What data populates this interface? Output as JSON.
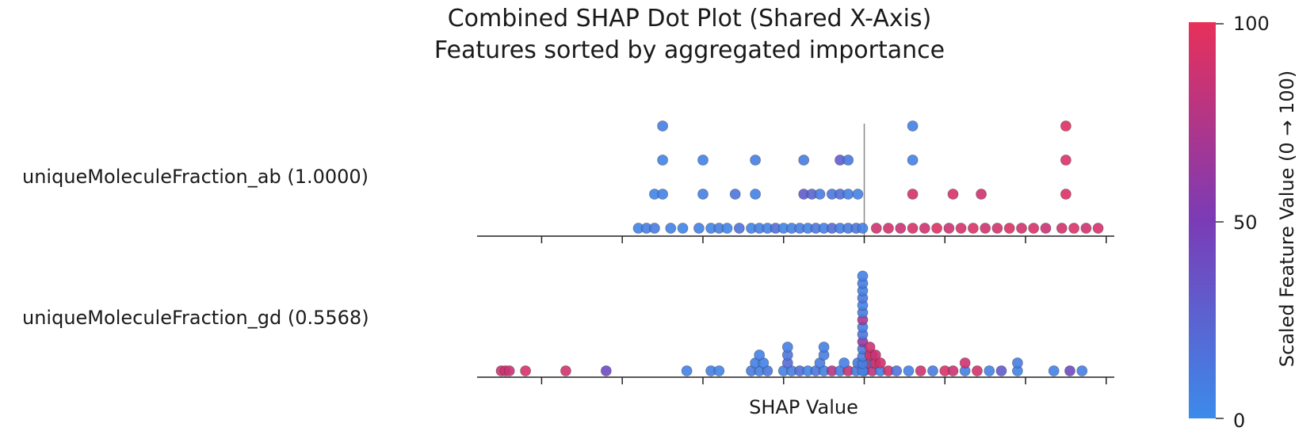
{
  "chart_data": {
    "type": "scatter",
    "title": "Combined SHAP Dot Plot (Shared X-Axis)",
    "subtitle": "Features sorted by aggregated importance",
    "xlabel": "SHAP Value",
    "xlim": [
      -4.8,
      3.1
    ],
    "x_ticks": [
      -4,
      -3,
      -2,
      -1,
      0,
      1,
      2,
      3
    ],
    "zero_line": 0,
    "features": [
      {
        "label": "uniqueMoleculeFraction_ab (1.0000)",
        "points": [
          {
            "x": -2.8,
            "layer": 0,
            "v": 5
          },
          {
            "x": -2.7,
            "layer": 0,
            "v": 8
          },
          {
            "x": -2.6,
            "layer": 0,
            "v": 10
          },
          {
            "x": -2.4,
            "layer": 0,
            "v": 6
          },
          {
            "x": -2.25,
            "layer": 0,
            "v": 4
          },
          {
            "x": -2.05,
            "layer": 0,
            "v": 7
          },
          {
            "x": -1.9,
            "layer": 0,
            "v": 5
          },
          {
            "x": -1.8,
            "layer": 0,
            "v": 9
          },
          {
            "x": -1.7,
            "layer": 0,
            "v": 4
          },
          {
            "x": -1.55,
            "layer": 0,
            "v": 16
          },
          {
            "x": -1.4,
            "layer": 0,
            "v": 5
          },
          {
            "x": -1.3,
            "layer": 0,
            "v": 8
          },
          {
            "x": -1.2,
            "layer": 0,
            "v": 6
          },
          {
            "x": -1.1,
            "layer": 0,
            "v": 18
          },
          {
            "x": -1.0,
            "layer": 0,
            "v": 4
          },
          {
            "x": -0.9,
            "layer": 0,
            "v": 7
          },
          {
            "x": -0.8,
            "layer": 0,
            "v": 9
          },
          {
            "x": -0.7,
            "layer": 0,
            "v": 5
          },
          {
            "x": -0.6,
            "layer": 0,
            "v": 12
          },
          {
            "x": -0.5,
            "layer": 0,
            "v": 6
          },
          {
            "x": -0.4,
            "layer": 0,
            "v": 20
          },
          {
            "x": -0.3,
            "layer": 0,
            "v": 8
          },
          {
            "x": -0.2,
            "layer": 0,
            "v": 10
          },
          {
            "x": -0.1,
            "layer": 0,
            "v": 14
          },
          {
            "x": -0.02,
            "layer": 0,
            "v": 6
          },
          {
            "x": 0.15,
            "layer": 0,
            "v": 88
          },
          {
            "x": 0.3,
            "layer": 0,
            "v": 90
          },
          {
            "x": 0.45,
            "layer": 0,
            "v": 86
          },
          {
            "x": 0.6,
            "layer": 0,
            "v": 92
          },
          {
            "x": 0.75,
            "layer": 0,
            "v": 89
          },
          {
            "x": 0.9,
            "layer": 0,
            "v": 95
          },
          {
            "x": 1.05,
            "layer": 0,
            "v": 87
          },
          {
            "x": 1.2,
            "layer": 0,
            "v": 91
          },
          {
            "x": 1.35,
            "layer": 0,
            "v": 93
          },
          {
            "x": 1.5,
            "layer": 0,
            "v": 88
          },
          {
            "x": 1.65,
            "layer": 0,
            "v": 90
          },
          {
            "x": 1.8,
            "layer": 0,
            "v": 94
          },
          {
            "x": 1.95,
            "layer": 0,
            "v": 89
          },
          {
            "x": 2.1,
            "layer": 0,
            "v": 92
          },
          {
            "x": 2.25,
            "layer": 0,
            "v": 86
          },
          {
            "x": 2.45,
            "layer": 0,
            "v": 90
          },
          {
            "x": 2.6,
            "layer": 0,
            "v": 93
          },
          {
            "x": 2.75,
            "layer": 0,
            "v": 88
          },
          {
            "x": 2.9,
            "layer": 0,
            "v": 91
          },
          {
            "x": -2.6,
            "layer": 1,
            "v": 4
          },
          {
            "x": -2.5,
            "layer": 1,
            "v": 6
          },
          {
            "x": -2.0,
            "layer": 1,
            "v": 8
          },
          {
            "x": -1.6,
            "layer": 1,
            "v": 14
          },
          {
            "x": -1.35,
            "layer": 1,
            "v": 6
          },
          {
            "x": -0.75,
            "layer": 1,
            "v": 30
          },
          {
            "x": -0.65,
            "layer": 1,
            "v": 24
          },
          {
            "x": -0.55,
            "layer": 1,
            "v": 10
          },
          {
            "x": -0.4,
            "layer": 1,
            "v": 12
          },
          {
            "x": -0.3,
            "layer": 1,
            "v": 18
          },
          {
            "x": -0.2,
            "layer": 1,
            "v": 8
          },
          {
            "x": -0.08,
            "layer": 1,
            "v": 6
          },
          {
            "x": 0.6,
            "layer": 1,
            "v": 90
          },
          {
            "x": 1.1,
            "layer": 1,
            "v": 92
          },
          {
            "x": 1.45,
            "layer": 1,
            "v": 88
          },
          {
            "x": 2.5,
            "layer": 1,
            "v": 94
          },
          {
            "x": -2.5,
            "layer": 2,
            "v": 5
          },
          {
            "x": -2.0,
            "layer": 2,
            "v": 6
          },
          {
            "x": -1.35,
            "layer": 2,
            "v": 8
          },
          {
            "x": -0.75,
            "layer": 2,
            "v": 10
          },
          {
            "x": -0.3,
            "layer": 2,
            "v": 28
          },
          {
            "x": -0.2,
            "layer": 2,
            "v": 12
          },
          {
            "x": 0.6,
            "layer": 2,
            "v": 6
          },
          {
            "x": 2.5,
            "layer": 2,
            "v": 93
          },
          {
            "x": -2.5,
            "layer": 3,
            "v": 8
          },
          {
            "x": 0.6,
            "layer": 3,
            "v": 7
          },
          {
            "x": 2.5,
            "layer": 3,
            "v": 95
          }
        ]
      },
      {
        "label": "uniqueMoleculeFraction_gd (0.5568)",
        "points": [
          {
            "x": -4.5,
            "layer": 0,
            "v": 88
          },
          {
            "x": -4.45,
            "layer": 0,
            "v": 90
          },
          {
            "x": -4.4,
            "layer": 0,
            "v": 86
          },
          {
            "x": -4.2,
            "layer": 0,
            "v": 92
          },
          {
            "x": -3.7,
            "layer": 0,
            "v": 89
          },
          {
            "x": -3.2,
            "layer": 0,
            "v": 40
          },
          {
            "x": -2.2,
            "layer": 0,
            "v": 6
          },
          {
            "x": -1.9,
            "layer": 0,
            "v": 8
          },
          {
            "x": -1.8,
            "layer": 0,
            "v": 5
          },
          {
            "x": -1.4,
            "layer": 0,
            "v": 10
          },
          {
            "x": -1.3,
            "layer": 0,
            "v": 7
          },
          {
            "x": -1.2,
            "layer": 0,
            "v": 12
          },
          {
            "x": -1.0,
            "layer": 0,
            "v": 6
          },
          {
            "x": -0.9,
            "layer": 0,
            "v": 9
          },
          {
            "x": -0.8,
            "layer": 0,
            "v": 18
          },
          {
            "x": -0.7,
            "layer": 0,
            "v": 5
          },
          {
            "x": -0.6,
            "layer": 0,
            "v": 14
          },
          {
            "x": -0.5,
            "layer": 0,
            "v": 8
          },
          {
            "x": -0.4,
            "layer": 0,
            "v": 75
          },
          {
            "x": -0.3,
            "layer": 0,
            "v": 10
          },
          {
            "x": -0.2,
            "layer": 0,
            "v": 85
          },
          {
            "x": -0.1,
            "layer": 0,
            "v": 12
          },
          {
            "x": 0.0,
            "layer": 0,
            "v": 20
          },
          {
            "x": 0.1,
            "layer": 0,
            "v": 80
          },
          {
            "x": 0.2,
            "layer": 0,
            "v": 8
          },
          {
            "x": 0.3,
            "layer": 0,
            "v": 90
          },
          {
            "x": 0.4,
            "layer": 0,
            "v": 15
          },
          {
            "x": 0.55,
            "layer": 0,
            "v": 6
          },
          {
            "x": 0.7,
            "layer": 0,
            "v": 88
          },
          {
            "x": 0.85,
            "layer": 0,
            "v": 10
          },
          {
            "x": 1.0,
            "layer": 0,
            "v": 92
          },
          {
            "x": 1.1,
            "layer": 0,
            "v": 86
          },
          {
            "x": 1.25,
            "layer": 0,
            "v": 8
          },
          {
            "x": 1.4,
            "layer": 0,
            "v": 90
          },
          {
            "x": 1.55,
            "layer": 0,
            "v": 6
          },
          {
            "x": 1.7,
            "layer": 0,
            "v": 30
          },
          {
            "x": 1.9,
            "layer": 0,
            "v": 5
          },
          {
            "x": 2.35,
            "layer": 0,
            "v": 6
          },
          {
            "x": 2.55,
            "layer": 0,
            "v": 40
          },
          {
            "x": 2.7,
            "layer": 0,
            "v": 8
          },
          {
            "x": -1.35,
            "layer": 1,
            "v": 8
          },
          {
            "x": -1.25,
            "layer": 1,
            "v": 6
          },
          {
            "x": -0.95,
            "layer": 1,
            "v": 20
          },
          {
            "x": -0.55,
            "layer": 1,
            "v": 10
          },
          {
            "x": -0.25,
            "layer": 1,
            "v": 7
          },
          {
            "x": -0.08,
            "layer": 1,
            "v": 12
          },
          {
            "x": 0.05,
            "layer": 1,
            "v": 80
          },
          {
            "x": 0.12,
            "layer": 1,
            "v": 10
          },
          {
            "x": 1.25,
            "layer": 1,
            "v": 88
          },
          {
            "x": 1.9,
            "layer": 1,
            "v": 9
          },
          {
            "x": -1.3,
            "layer": 2,
            "v": 6
          },
          {
            "x": -0.95,
            "layer": 2,
            "v": 12
          },
          {
            "x": -0.5,
            "layer": 2,
            "v": 9
          },
          {
            "x": 0.1,
            "layer": 2,
            "v": 85
          },
          {
            "x": -0.95,
            "layer": 3,
            "v": 8
          },
          {
            "x": -0.5,
            "layer": 3,
            "v": 7
          }
        ],
        "spike": {
          "x": -0.02,
          "layers": 14,
          "v": [
            6,
            8,
            10,
            12,
            60,
            14,
            8,
            70,
            10,
            6,
            12,
            8,
            10,
            6
          ]
        },
        "spike_tail": [
          {
            "x": 0.07,
            "layer": 2,
            "v": 90
          },
          {
            "x": 0.07,
            "layer": 3,
            "v": 88
          },
          {
            "x": 0.14,
            "layer": 1,
            "v": 92
          },
          {
            "x": 0.14,
            "layer": 2,
            "v": 86
          },
          {
            "x": 0.2,
            "layer": 1,
            "v": 90
          }
        ]
      }
    ],
    "colorbar": {
      "label": "Scaled Feature Value (0 → 100)",
      "ticks": [
        "100",
        "50",
        "0"
      ],
      "low_color": "#3b8beb",
      "mid_color": "#7b3bb6",
      "high_color": "#e8305a"
    }
  }
}
